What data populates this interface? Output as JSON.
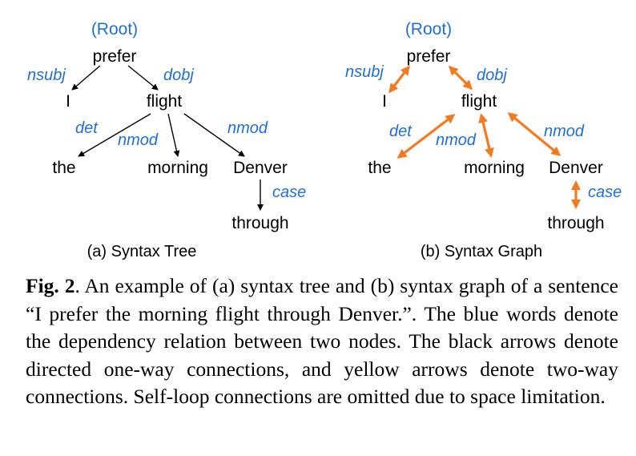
{
  "colors": {
    "relation": "#1f6fd6",
    "two_way": "#f47a20",
    "one_way": "#000000"
  },
  "tree": {
    "root_label": "(Root)",
    "words": {
      "prefer": "prefer",
      "i": "I",
      "flight": "flight",
      "the": "the",
      "morning": "morning",
      "denver": "Denver",
      "through": "through"
    },
    "relations": {
      "nsubj": "nsubj",
      "dobj": "dobj",
      "det": "det",
      "nmod_morning": "nmod",
      "nmod_denver": "nmod",
      "case": "case"
    },
    "caption": "(a) Syntax Tree"
  },
  "graph": {
    "root_label": "(Root)",
    "words": {
      "prefer": "prefer",
      "i": "I",
      "flight": "flight",
      "the": "the",
      "morning": "morning",
      "denver": "Denver",
      "through": "through"
    },
    "relations": {
      "nsubj": "nsubj",
      "dobj": "dobj",
      "det": "det",
      "nmod_morning": "nmod",
      "nmod_denver": "nmod",
      "case": "case"
    },
    "caption": "(b) Syntax Graph"
  },
  "caption": {
    "label": "Fig. 2",
    "text": ". An example of (a) syntax tree and (b) syntax graph of a sentence “I prefer the morning flight through Denver.”. The blue words denote the dependency relation between two nodes. The black arrows denote directed one-way connections, and yellow arrows denote two-way connections. Self-loop connections are omitted due to space limitation."
  }
}
